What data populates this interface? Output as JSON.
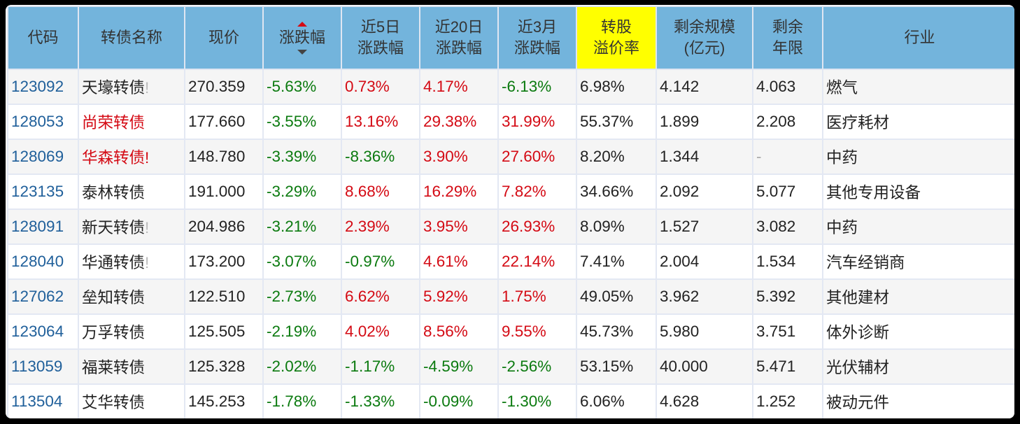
{
  "colors": {
    "header_bg": "#73b4dc",
    "highlight": "#ffff00",
    "up": "#d40a14",
    "down": "#0b7a0f",
    "code": "#1f5f9a"
  },
  "headers": [
    "代码",
    "转债名称",
    "现价",
    "涨跌幅",
    "近5日\n涨跌幅",
    "近20日\n涨跌幅",
    "近3月\n涨跌幅",
    "转股\n溢价率",
    "剩余规模\n(亿元)",
    "剩余\n年限",
    "行业"
  ],
  "header_lines": {
    "c4": [
      "近5日",
      "涨跌幅"
    ],
    "c5": [
      "近20日",
      "涨跌幅"
    ],
    "c6": [
      "近3月",
      "涨跌幅"
    ],
    "c7": [
      "转股",
      "溢价率"
    ],
    "c8": [
      "剩余规模",
      "(亿元)"
    ],
    "c9": [
      "剩余",
      "年限"
    ]
  },
  "h": {
    "c0": "代码",
    "c1": "转债名称",
    "c2": "现价",
    "c3": "涨跌幅",
    "c10": "行业"
  },
  "rows": [
    {
      "code": "123092",
      "name": "天壕转债",
      "mark": "!",
      "name_color": "normal",
      "mark_color": "gray",
      "price": "270.359",
      "chg": "-5.63%",
      "d5": "0.73%",
      "d20": "4.17%",
      "m3": "-6.13%",
      "premium": "6.98%",
      "size": "4.142",
      "years": "4.063",
      "industry": "燃气"
    },
    {
      "code": "128053",
      "name": "尚荣转债",
      "mark": "",
      "name_color": "red",
      "price": "177.660",
      "chg": "-3.55%",
      "d5": "13.16%",
      "d20": "29.38%",
      "m3": "31.99%",
      "premium": "55.37%",
      "size": "1.899",
      "years": "2.208",
      "industry": "医疗耗材"
    },
    {
      "code": "128069",
      "name": "华森转债",
      "mark": "!",
      "name_color": "red",
      "mark_color": "red",
      "price": "148.780",
      "chg": "-3.39%",
      "d5": "-8.36%",
      "d20": "3.90%",
      "m3": "27.60%",
      "premium": "8.20%",
      "size": "1.344",
      "years": "-",
      "industry": "中药"
    },
    {
      "code": "123135",
      "name": "泰林转债",
      "mark": "",
      "name_color": "normal",
      "price": "191.000",
      "chg": "-3.29%",
      "d5": "8.68%",
      "d20": "16.29%",
      "m3": "7.82%",
      "premium": "34.66%",
      "size": "2.092",
      "years": "5.077",
      "industry": "其他专用设备"
    },
    {
      "code": "128091",
      "name": "新天转债",
      "mark": "!",
      "name_color": "normal",
      "mark_color": "gray",
      "price": "204.986",
      "chg": "-3.21%",
      "d5": "2.39%",
      "d20": "3.95%",
      "m3": "26.93%",
      "premium": "8.09%",
      "size": "1.527",
      "years": "3.082",
      "industry": "中药"
    },
    {
      "code": "128040",
      "name": "华通转债",
      "mark": "!",
      "name_color": "normal",
      "mark_color": "gray",
      "price": "173.200",
      "chg": "-3.07%",
      "d5": "-0.97%",
      "d20": "4.61%",
      "m3": "22.14%",
      "premium": "7.41%",
      "size": "2.004",
      "years": "1.534",
      "industry": "汽车经销商"
    },
    {
      "code": "127062",
      "name": "垒知转债",
      "mark": "",
      "name_color": "normal",
      "price": "122.510",
      "chg": "-2.73%",
      "d5": "6.62%",
      "d20": "5.92%",
      "m3": "1.75%",
      "premium": "49.05%",
      "size": "3.962",
      "years": "5.392",
      "industry": "其他建材"
    },
    {
      "code": "123064",
      "name": "万孚转债",
      "mark": "",
      "name_color": "normal",
      "price": "125.505",
      "chg": "-2.19%",
      "d5": "4.02%",
      "d20": "8.56%",
      "m3": "9.55%",
      "premium": "45.73%",
      "size": "5.980",
      "years": "3.751",
      "industry": "体外诊断"
    },
    {
      "code": "113059",
      "name": "福莱转债",
      "mark": "",
      "name_color": "normal",
      "price": "125.328",
      "chg": "-2.02%",
      "d5": "-1.17%",
      "d20": "-4.59%",
      "m3": "-2.56%",
      "premium": "53.15%",
      "size": "40.000",
      "years": "5.471",
      "industry": "光伏辅材"
    },
    {
      "code": "113504",
      "name": "艾华转债",
      "mark": "",
      "name_color": "normal",
      "price": "145.253",
      "chg": "-1.78%",
      "d5": "-1.33%",
      "d20": "-0.09%",
      "m3": "-1.30%",
      "premium": "6.06%",
      "size": "4.628",
      "years": "1.252",
      "industry": "被动元件"
    }
  ]
}
